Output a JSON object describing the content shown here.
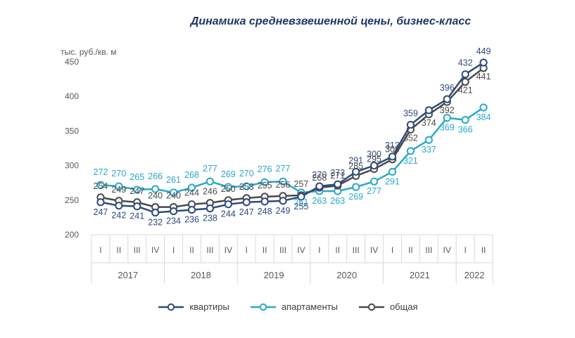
{
  "title": "Динамика средневзвешенной цены, бизнес-класс",
  "chart_data": {
    "type": "line",
    "title": "Динамика средневзвешенной цены, бизнес-класс",
    "ylabel": "тыс. руб./кв. м",
    "ylim": [
      200,
      450
    ],
    "yticks": [
      "200",
      "250",
      "300",
      "350",
      "400",
      "450"
    ],
    "quarters": [
      "I",
      "II",
      "III",
      "IV",
      "I",
      "II",
      "III",
      "IV",
      "I",
      "II",
      "III",
      "IV",
      "I",
      "II",
      "III",
      "IV",
      "I",
      "II",
      "III",
      "IV",
      "I",
      "II"
    ],
    "years": [
      {
        "label": "2017",
        "count": 4
      },
      {
        "label": "2018",
        "count": 4
      },
      {
        "label": "2019",
        "count": 4
      },
      {
        "label": "2020",
        "count": 4
      },
      {
        "label": "2021",
        "count": 4
      },
      {
        "label": "2022",
        "count": 2
      }
    ],
    "grid": false,
    "legend_position": "bottom",
    "series": [
      {
        "name": "квартиры",
        "color": "#2e4a7d",
        "values": [
          247,
          242,
          241,
          232,
          234,
          236,
          238,
          244,
          247,
          248,
          249,
          255,
          270,
          273,
          291,
          300,
          313,
          359,
          380,
          396,
          432,
          449
        ]
      },
      {
        "name": "апартаменты",
        "color": "#2aa8c9",
        "values": [
          272,
          270,
          265,
          266,
          261,
          268,
          277,
          269,
          270,
          276,
          277,
          261,
          263,
          263,
          269,
          277,
          291,
          321,
          337,
          369,
          366,
          384
        ]
      },
      {
        "name": "общая",
        "color": "#4a4a4a",
        "values": [
          254,
          249,
          247,
          240,
          240,
          244,
          246,
          250,
          253,
          255,
          256,
          257,
          268,
          271,
          285,
          295,
          309,
          352,
          374,
          392,
          421,
          441
        ]
      }
    ],
    "data_labels": [
      {
        "s": 0,
        "i": 0,
        "t": "247"
      },
      {
        "s": 0,
        "i": 1,
        "t": "242"
      },
      {
        "s": 0,
        "i": 2,
        "t": "241"
      },
      {
        "s": 0,
        "i": 3,
        "t": "232"
      },
      {
        "s": 0,
        "i": 4,
        "t": "234"
      },
      {
        "s": 0,
        "i": 5,
        "t": "236"
      },
      {
        "s": 0,
        "i": 6,
        "t": "238"
      },
      {
        "s": 0,
        "i": 7,
        "t": "244"
      },
      {
        "s": 0,
        "i": 8,
        "t": "247"
      },
      {
        "s": 0,
        "i": 9,
        "t": "248"
      },
      {
        "s": 0,
        "i": 10,
        "t": "249"
      },
      {
        "s": 0,
        "i": 11,
        "t": "255"
      },
      {
        "s": 0,
        "i": 12,
        "t": "270"
      },
      {
        "s": 0,
        "i": 13,
        "t": "273"
      },
      {
        "s": 0,
        "i": 14,
        "t": "291"
      },
      {
        "s": 0,
        "i": 15,
        "t": "300"
      },
      {
        "s": 0,
        "i": 16,
        "t": "313"
      },
      {
        "s": 0,
        "i": 17,
        "t": "359"
      },
      {
        "s": 0,
        "i": 19,
        "t": "396"
      },
      {
        "s": 0,
        "i": 20,
        "t": "432"
      },
      {
        "s": 0,
        "i": 21,
        "t": "449"
      },
      {
        "s": 1,
        "i": 0,
        "t": "272"
      },
      {
        "s": 1,
        "i": 1,
        "t": "270"
      },
      {
        "s": 1,
        "i": 2,
        "t": "265"
      },
      {
        "s": 1,
        "i": 3,
        "t": "266"
      },
      {
        "s": 1,
        "i": 4,
        "t": "261"
      },
      {
        "s": 1,
        "i": 5,
        "t": "268"
      },
      {
        "s": 1,
        "i": 6,
        "t": "277"
      },
      {
        "s": 1,
        "i": 7,
        "t": "269"
      },
      {
        "s": 1,
        "i": 8,
        "t": "270"
      },
      {
        "s": 1,
        "i": 9,
        "t": "276"
      },
      {
        "s": 1,
        "i": 10,
        "t": "277"
      },
      {
        "s": 1,
        "i": 11,
        "t": "261"
      },
      {
        "s": 1,
        "i": 12,
        "t": "263"
      },
      {
        "s": 1,
        "i": 13,
        "t": "263"
      },
      {
        "s": 1,
        "i": 14,
        "t": "269"
      },
      {
        "s": 1,
        "i": 15,
        "t": "277"
      },
      {
        "s": 1,
        "i": 16,
        "t": "291"
      },
      {
        "s": 1,
        "i": 17,
        "t": "321"
      },
      {
        "s": 1,
        "i": 18,
        "t": "337"
      },
      {
        "s": 1,
        "i": 19,
        "t": "369"
      },
      {
        "s": 1,
        "i": 20,
        "t": "366"
      },
      {
        "s": 1,
        "i": 21,
        "t": "384"
      },
      {
        "s": 2,
        "i": 0,
        "t": "254"
      },
      {
        "s": 2,
        "i": 1,
        "t": "249"
      },
      {
        "s": 2,
        "i": 2,
        "t": "247"
      },
      {
        "s": 2,
        "i": 3,
        "t": "240"
      },
      {
        "s": 2,
        "i": 4,
        "t": "240"
      },
      {
        "s": 2,
        "i": 5,
        "t": "244"
      },
      {
        "s": 2,
        "i": 6,
        "t": "246"
      },
      {
        "s": 2,
        "i": 7,
        "t": "250"
      },
      {
        "s": 2,
        "i": 8,
        "t": "253"
      },
      {
        "s": 2,
        "i": 9,
        "t": "255"
      },
      {
        "s": 2,
        "i": 10,
        "t": "256"
      },
      {
        "s": 2,
        "i": 11,
        "t": "257"
      },
      {
        "s": 2,
        "i": 12,
        "t": "268"
      },
      {
        "s": 2,
        "i": 13,
        "t": "271"
      },
      {
        "s": 2,
        "i": 14,
        "t": "285"
      },
      {
        "s": 2,
        "i": 15,
        "t": "295"
      },
      {
        "s": 2,
        "i": 16,
        "t": "309"
      },
      {
        "s": 2,
        "i": 17,
        "t": "352"
      },
      {
        "s": 2,
        "i": 18,
        "t": "374"
      },
      {
        "s": 2,
        "i": 19,
        "t": "392"
      },
      {
        "s": 2,
        "i": 20,
        "t": "421"
      },
      {
        "s": 2,
        "i": 21,
        "t": "441"
      }
    ]
  }
}
